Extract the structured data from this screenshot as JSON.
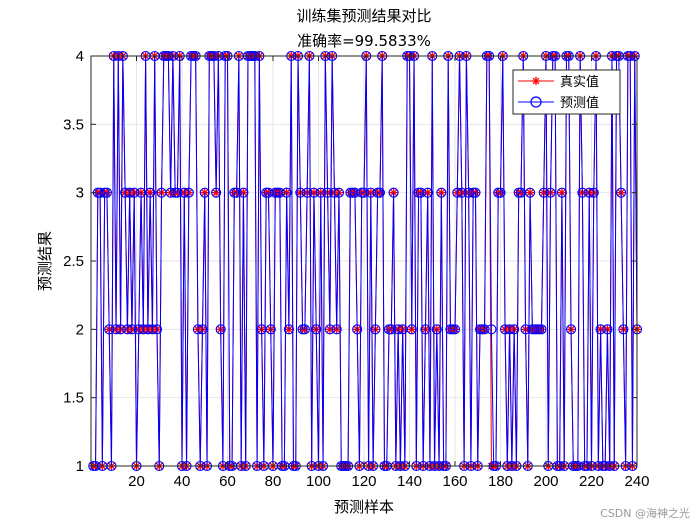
{
  "chart_data": {
    "type": "line",
    "title": "训练集预测结果对比",
    "subtitle": "准确率=99.5833%",
    "xlabel": "预测样本",
    "ylabel": "预测结果",
    "xlim": [
      0,
      240
    ],
    "ylim": [
      1,
      4
    ],
    "xticks": [
      20,
      40,
      60,
      80,
      100,
      120,
      140,
      160,
      180,
      200,
      220,
      240
    ],
    "yticks": [
      1,
      1.5,
      2,
      2.5,
      3,
      3.5,
      4
    ],
    "grid": true,
    "legend_position": "top-right",
    "series": [
      {
        "name": "真实值",
        "color": "#ff0000",
        "marker": "asterisk",
        "values": [
          1,
          1,
          3,
          3,
          1,
          3,
          3,
          2,
          1,
          4,
          2,
          4,
          2,
          4,
          3,
          2,
          3,
          2,
          3,
          1,
          2,
          3,
          2,
          4,
          2,
          3,
          2,
          4,
          2,
          1,
          3,
          4,
          4,
          4,
          3,
          4,
          3,
          3,
          4,
          1,
          3,
          1,
          3,
          4,
          4,
          4,
          2,
          1,
          2,
          3,
          1,
          4,
          4,
          4,
          3,
          4,
          2,
          1,
          4,
          4,
          1,
          1,
          3,
          3,
          4,
          1,
          3,
          1,
          4,
          4,
          4,
          4,
          1,
          4,
          2,
          1,
          3,
          3,
          2,
          1,
          3,
          3,
          3,
          1,
          1,
          3,
          2,
          4,
          1,
          1,
          4,
          3,
          2,
          2,
          3,
          4,
          1,
          3,
          2,
          1,
          3,
          1,
          4,
          3,
          2,
          4,
          3,
          2,
          3,
          1,
          1,
          1,
          1,
          3,
          3,
          3,
          2,
          1,
          3,
          3,
          4,
          1,
          3,
          1,
          2,
          3,
          3,
          4,
          1,
          1,
          2,
          2,
          3,
          1,
          2,
          1,
          2,
          1,
          4,
          4,
          2,
          4,
          1,
          3,
          3,
          1,
          2,
          3,
          1,
          4,
          1,
          2,
          1,
          3,
          1,
          1,
          4,
          2,
          2,
          2,
          3,
          4,
          3,
          1,
          4,
          3,
          1,
          3,
          3,
          1,
          2,
          2,
          2,
          4,
          4,
          1,
          1,
          1,
          3,
          3,
          4,
          2,
          1,
          2,
          1,
          2,
          1,
          3,
          3,
          4,
          2,
          1,
          3,
          2,
          2,
          2,
          2,
          2,
          3,
          4,
          1,
          3,
          4,
          4,
          1,
          1,
          3,
          1,
          4,
          4,
          2,
          1,
          1,
          1,
          4,
          3,
          1,
          1,
          3,
          1,
          3,
          4,
          1,
          2,
          1,
          1,
          2,
          1,
          4,
          1,
          4,
          4,
          3,
          2,
          1,
          4,
          4,
          1,
          4,
          2
        ]
      },
      {
        "name": "预测值",
        "color": "#0000ff",
        "marker": "circle",
        "values": [
          1,
          1,
          3,
          3,
          1,
          3,
          3,
          2,
          1,
          4,
          2,
          4,
          2,
          4,
          3,
          2,
          3,
          2,
          3,
          1,
          2,
          3,
          2,
          4,
          2,
          3,
          2,
          4,
          2,
          1,
          3,
          4,
          4,
          4,
          3,
          4,
          3,
          3,
          4,
          1,
          3,
          1,
          3,
          4,
          4,
          4,
          2,
          1,
          2,
          3,
          1,
          4,
          4,
          4,
          3,
          4,
          2,
          1,
          4,
          4,
          1,
          1,
          3,
          3,
          4,
          1,
          3,
          1,
          4,
          4,
          4,
          4,
          1,
          4,
          2,
          1,
          3,
          3,
          2,
          1,
          3,
          3,
          3,
          1,
          1,
          3,
          2,
          4,
          1,
          1,
          4,
          3,
          2,
          2,
          3,
          4,
          1,
          3,
          2,
          1,
          3,
          1,
          4,
          3,
          2,
          4,
          3,
          2,
          3,
          1,
          1,
          1,
          1,
          3,
          3,
          3,
          2,
          1,
          3,
          3,
          4,
          1,
          3,
          1,
          2,
          3,
          3,
          4,
          1,
          1,
          2,
          2,
          3,
          1,
          2,
          1,
          2,
          1,
          4,
          4,
          2,
          4,
          1,
          3,
          3,
          1,
          2,
          3,
          1,
          4,
          1,
          2,
          1,
          3,
          1,
          1,
          4,
          2,
          2,
          2,
          3,
          4,
          3,
          1,
          4,
          3,
          1,
          3,
          3,
          1,
          2,
          2,
          2,
          4,
          4,
          2,
          1,
          1,
          3,
          3,
          4,
          2,
          1,
          2,
          1,
          2,
          1,
          3,
          3,
          4,
          2,
          1,
          3,
          2,
          2,
          2,
          2,
          2,
          3,
          4,
          1,
          3,
          4,
          4,
          1,
          1,
          3,
          1,
          4,
          4,
          2,
          1,
          1,
          1,
          4,
          3,
          1,
          1,
          3,
          1,
          3,
          4,
          1,
          2,
          1,
          1,
          2,
          1,
          4,
          1,
          4,
          4,
          3,
          2,
          1,
          4,
          4,
          1,
          4,
          2
        ]
      }
    ]
  },
  "watermark": "CSDN @海神之光"
}
